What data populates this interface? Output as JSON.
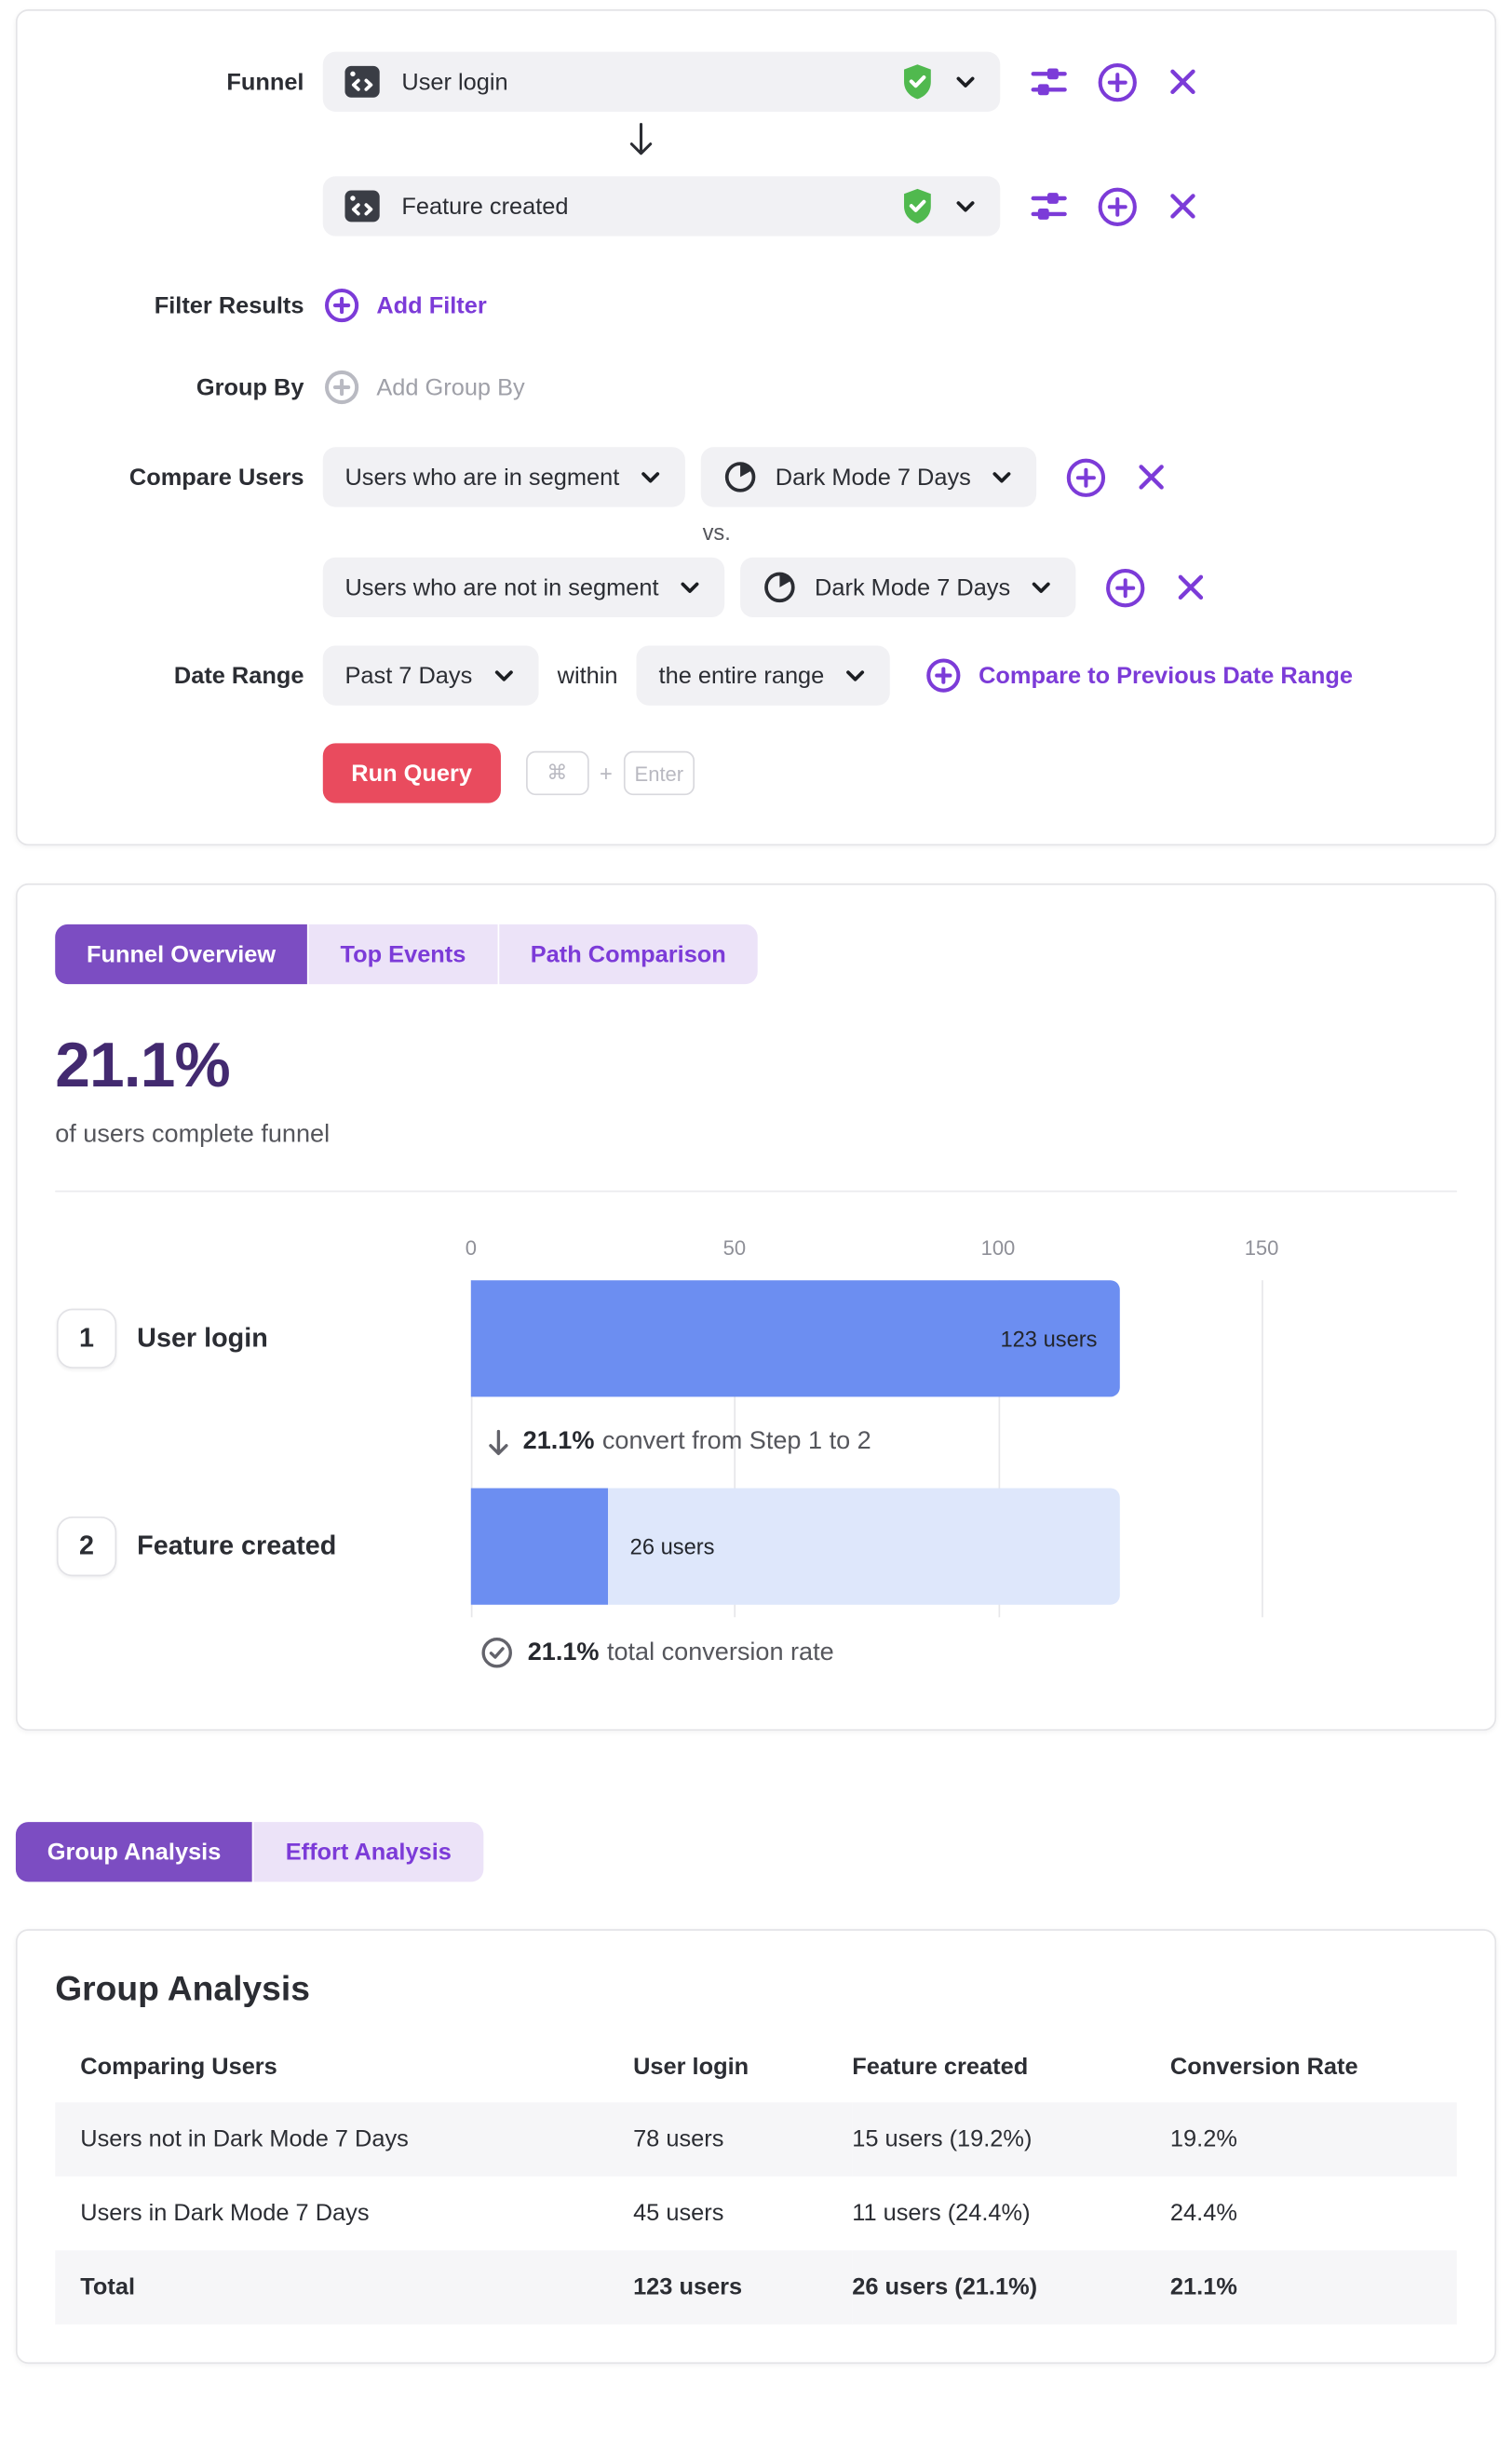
{
  "query_builder": {
    "funnel_label": "Funnel",
    "steps": [
      {
        "event": "User login"
      },
      {
        "event": "Feature created"
      }
    ],
    "filter": {
      "label": "Filter Results",
      "add_label": "Add Filter"
    },
    "group_by": {
      "label": "Group By",
      "add_label": "Add Group By"
    },
    "compare_users": {
      "label": "Compare Users",
      "vs_label": "vs.",
      "rows": [
        {
          "selector": "Users who are in segment",
          "segment": "Dark Mode 7 Days"
        },
        {
          "selector": "Users who are not in segment",
          "segment": "Dark Mode 7 Days"
        }
      ]
    },
    "date_range": {
      "label": "Date Range",
      "range": "Past 7 Days",
      "within_label": "within",
      "window": "the entire range",
      "compare_link": "Compare to Previous Date Range"
    },
    "run_query_label": "Run Query",
    "shortcut": {
      "mod": "⌘",
      "plus": "+",
      "key": "Enter"
    }
  },
  "overview": {
    "tabs": {
      "funnel_overview": "Funnel Overview",
      "top_events": "Top Events",
      "path_comparison": "Path Comparison"
    },
    "headline_value": "21.1%",
    "headline_caption": "of users complete funnel",
    "chart_data": {
      "type": "bar",
      "orientation": "horizontal",
      "categories": [
        "User login",
        "Feature created"
      ],
      "values": [
        123,
        26
      ],
      "value_labels": [
        "123 users",
        "26 users"
      ],
      "step_numbers": [
        "1",
        "2"
      ],
      "axis_max": 150,
      "ticks": [
        "0",
        "50",
        "100",
        "150"
      ],
      "grid": true,
      "bar_color": "#6c8ef1",
      "track_color": "#dee7fb"
    },
    "convert_note": {
      "pct": "21.1%",
      "text": "convert from Step 1 to 2"
    },
    "total_note": {
      "pct": "21.1%",
      "text": "total conversion rate"
    }
  },
  "analysis": {
    "tabs": {
      "group": "Group Analysis",
      "effort": "Effort Analysis"
    },
    "title": "Group Analysis",
    "table": {
      "columns": [
        "Comparing Users",
        "User login",
        "Feature created",
        "Conversion Rate"
      ],
      "rows": [
        [
          "Users not in Dark Mode 7 Days",
          "78 users",
          "15 users (19.2%)",
          "19.2%"
        ],
        [
          "Users in Dark Mode 7 Days",
          "45 users",
          "11 users (24.4%)",
          "24.4%"
        ],
        [
          "Total",
          "123 users",
          "26 users (21.1%)",
          "21.1%"
        ]
      ]
    }
  },
  "colors": {
    "accent_purple": "#7c3bd8",
    "tab_active_bg": "#7c4dc2",
    "tab_inactive_bg": "#ece3f8",
    "headline_purple": "#432a70",
    "run_button_red": "#e94b5e",
    "bar_blue": "#6c8ef1",
    "bar_track_blue": "#dee7fb",
    "badge_green": "#50b94e"
  }
}
